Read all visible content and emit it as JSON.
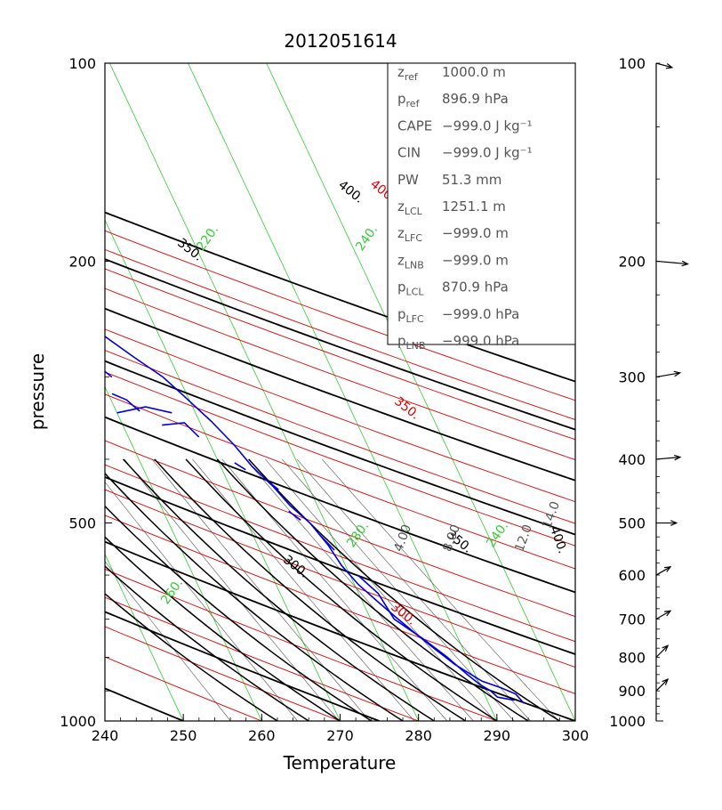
{
  "chart_data": {
    "type": "skew-t",
    "title": "2012051614",
    "xlabel": "Temperature",
    "ylabel": "pressure",
    "xlim": [
      240,
      300
    ],
    "ylim": [
      1000,
      100
    ],
    "y_scale": "log",
    "x_ticks": [
      "240",
      "250",
      "260",
      "270",
      "280",
      "290",
      "300"
    ],
    "y_ticks": [
      "100",
      "200",
      "500",
      "1000"
    ],
    "wind_axis_ticks": [
      "100",
      "200",
      "300",
      "400",
      "500",
      "600",
      "700",
      "800",
      "900",
      "1000"
    ],
    "stats": [
      {
        "base": "z",
        "sub": "ref",
        "value": "1000.0 m"
      },
      {
        "base": "p",
        "sub": "ref",
        "value": "896.9 hPa"
      },
      {
        "base": "CAPE",
        "sub": "",
        "value": "−999.0 J kg⁻¹"
      },
      {
        "base": "CIN",
        "sub": "",
        "value": "−999.0 J kg⁻¹"
      },
      {
        "base": "PW",
        "sub": "",
        "value": "51.3 mm"
      },
      {
        "base": "z",
        "sub": "LCL",
        "value": "1251.1 m"
      },
      {
        "base": "z",
        "sub": "LFC",
        "value": "−999.0 m"
      },
      {
        "base": "z",
        "sub": "LNB",
        "value": "−999.0 m"
      },
      {
        "base": "p",
        "sub": "LCL",
        "value": "870.9 hPa"
      },
      {
        "base": "p",
        "sub": "LFC",
        "value": "−999.0 hPa"
      },
      {
        "base": "p",
        "sub": "LNB",
        "value": "−999.0 hPa"
      }
    ],
    "contour_labels": [
      {
        "text": "400.",
        "color": "#000000"
      },
      {
        "text": "350.",
        "color": "#000000"
      },
      {
        "text": "300.",
        "color": "#000000"
      },
      {
        "text": "350.",
        "color": "#000000"
      },
      {
        "text": "400.",
        "color": "#000000"
      },
      {
        "text": "400.",
        "color": "#e00000"
      },
      {
        "text": "350.",
        "color": "#e00000"
      },
      {
        "text": "300.",
        "color": "#e00000"
      },
      {
        "text": "220.",
        "color": "#33cc33"
      },
      {
        "text": "240.",
        "color": "#33cc33"
      },
      {
        "text": "260.",
        "color": "#33cc33"
      },
      {
        "text": "280.",
        "color": "#33cc33"
      },
      {
        "text": "240.",
        "color": "#33cc33"
      },
      {
        "text": "4.00",
        "color": "#555555"
      },
      {
        "text": "8.00",
        "color": "#555555"
      },
      {
        "text": "12.0",
        "color": "#555555"
      },
      {
        "text": "14.0",
        "color": "#555555"
      }
    ],
    "temperature_profile": [
      [
        100,
        243.5
      ],
      [
        110,
        244.5
      ],
      [
        120,
        244.5
      ],
      [
        130,
        243.5
      ],
      [
        140,
        245
      ],
      [
        150,
        247
      ],
      [
        160,
        249
      ],
      [
        170,
        250
      ],
      [
        180,
        251
      ],
      [
        190,
        253
      ],
      [
        200,
        255
      ],
      [
        220,
        258
      ],
      [
        240,
        261
      ],
      [
        260,
        263
      ],
      [
        280,
        265.5
      ],
      [
        300,
        268
      ],
      [
        320,
        269.5
      ],
      [
        350,
        271.5
      ],
      [
        380,
        273
      ],
      [
        410,
        274
      ],
      [
        440,
        275.5
      ],
      [
        470,
        276.5
      ],
      [
        500,
        278
      ],
      [
        540,
        279
      ],
      [
        580,
        279.5
      ],
      [
        620,
        280.5
      ],
      [
        660,
        282
      ],
      [
        700,
        283.5
      ],
      [
        740,
        285
      ],
      [
        780,
        286.5
      ],
      [
        820,
        288
      ],
      [
        850,
        289.5
      ],
      [
        870,
        290.5
      ],
      [
        890,
        292.5
      ],
      [
        910,
        294
      ],
      [
        940,
        294.5
      ]
    ],
    "dewpoint_segments": [
      [
        [
          140,
          240
        ],
        [
          155,
          240.5
        ],
        [
          165,
          240
        ]
      ],
      [
        [
          160,
          242
        ],
        [
          172,
          243
        ],
        [
          176,
          244
        ]
      ],
      [
        [
          165,
          245
        ],
        [
          175,
          247
        ],
        [
          195,
          249
        ]
      ],
      [
        [
          200,
          250
        ],
        [
          207,
          251
        ],
        [
          215,
          252.5
        ],
        [
          230,
          254.5
        ]
      ],
      [
        [
          240,
          255
        ],
        [
          245,
          256.5
        ],
        [
          258,
          257.5
        ]
      ],
      [
        [
          268,
          258.5
        ],
        [
          278,
          258
        ],
        [
          285,
          260
        ],
        [
          300,
          261.5
        ]
      ],
      [
        [
          318,
          260.5
        ],
        [
          325,
          262
        ],
        [
          332,
          262.5
        ],
        [
          338,
          263
        ]
      ],
      [
        [
          340,
          260
        ],
        [
          333,
          264
        ],
        [
          340,
          267
        ]
      ],
      [
        [
          355,
          265
        ],
        [
          352,
          268
        ],
        [
          370,
          269
        ]
      ],
      [
        [
          405,
          272
        ],
        [
          415,
          273
        ]
      ],
      [
        [
          430,
          275
        ],
        [
          445,
          276
        ]
      ],
      [
        [
          480,
          276
        ],
        [
          495,
          277
        ]
      ],
      [
        [
          520,
          278.5
        ],
        [
          550,
          279.5
        ]
      ],
      [
        [
          600,
          281
        ],
        [
          640,
          282.5
        ],
        [
          700,
          283
        ],
        [
          750,
          285.5
        ],
        [
          800,
          287.5
        ],
        [
          850,
          289
        ],
        [
          880,
          290
        ],
        [
          900,
          291
        ],
        [
          920,
          291.5
        ],
        [
          930,
          293.5
        ]
      ]
    ],
    "wind_barbs": [
      {
        "p": 100,
        "dir": 285,
        "speed": 10
      },
      {
        "p": 200,
        "dir": 275,
        "speed": 30
      },
      {
        "p": 300,
        "dir": 260,
        "speed": 20
      },
      {
        "p": 400,
        "dir": 265,
        "speed": 20
      },
      {
        "p": 500,
        "dir": 270,
        "speed": 15
      },
      {
        "p": 600,
        "dir": 240,
        "speed": 10
      },
      {
        "p": 700,
        "dir": 240,
        "speed": 10
      },
      {
        "p": 800,
        "dir": 225,
        "speed": 10
      },
      {
        "p": 900,
        "dir": 225,
        "speed": 10
      }
    ],
    "colors": {
      "frame": "#000000",
      "temperature": "#0000dd",
      "dewpoint": "#0000dd",
      "dry_adiabat": "#000000",
      "isentrope": "#e00000",
      "isotherm": "#33cc33",
      "mixing_ratio": "#555555"
    }
  }
}
